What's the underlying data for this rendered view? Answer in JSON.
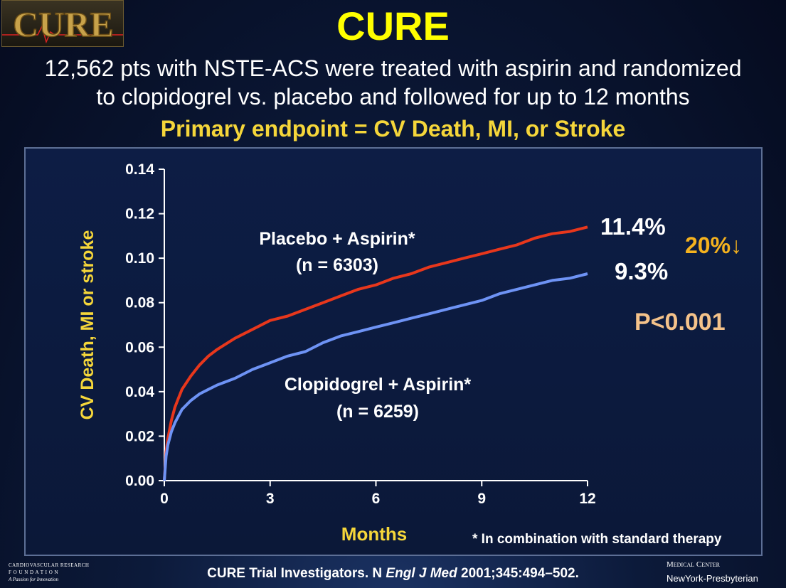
{
  "logo": {
    "text": "CURE"
  },
  "slide": {
    "title": "CURE",
    "subtitle_line1": "12,562 pts with NSTE-ACS were treated with aspirin and randomized",
    "subtitle_line2": "to clopidogrel vs. placebo and followed for up to 12 months",
    "endpoint": "Primary endpoint = CV Death, MI, or Stroke",
    "footnote": "* In combination with standard therapy",
    "citation_prefix": "CURE Trial Investigators. N ",
    "citation_journal": "Engl J Med",
    "citation_suffix": " 2001;345:494–502."
  },
  "logos": {
    "crf_line1": "CARDIOVASCULAR RESEARCH",
    "crf_line2": "F O U N D A T I O N",
    "crf_tagline": "A Passion for Innovation",
    "nyp_line1": "Medical Center",
    "nyp_line2": "NewYork-Presbyterian"
  },
  "colors": {
    "title": "#ffff00",
    "endpoint": "#f5d63a",
    "placebo": "#e8371c",
    "clopidogrel": "#6e93f5",
    "axis_label": "#f5d63a",
    "reduction": "#f5b21e",
    "pvalue": "#f4c28a"
  },
  "chart_data": {
    "type": "line",
    "xlabel": "Months",
    "ylabel": "CV Death, MI or stroke",
    "xlim": [
      0,
      12
    ],
    "ylim": [
      0,
      0.14
    ],
    "xticks": [
      "0",
      "3",
      "6",
      "9",
      "12"
    ],
    "yticks": [
      "0.00",
      "0.02",
      "0.04",
      "0.06",
      "0.08",
      "0.10",
      "0.12",
      "0.14"
    ],
    "grid": false,
    "series": [
      {
        "name": "Placebo + Aspirin*",
        "n_label": "(n = 6303)",
        "end_label": "11.4%",
        "x": [
          0,
          0.05,
          0.1,
          0.2,
          0.3,
          0.4,
          0.5,
          0.75,
          1,
          1.25,
          1.5,
          2,
          2.5,
          3,
          3.5,
          4,
          4.5,
          5,
          5.5,
          6,
          6.5,
          7,
          7.5,
          8,
          8.5,
          9,
          9.5,
          10,
          10.5,
          11,
          11.5,
          12
        ],
        "y": [
          0,
          0.013,
          0.019,
          0.027,
          0.033,
          0.037,
          0.041,
          0.047,
          0.052,
          0.056,
          0.059,
          0.064,
          0.068,
          0.072,
          0.074,
          0.077,
          0.08,
          0.083,
          0.086,
          0.088,
          0.091,
          0.093,
          0.096,
          0.098,
          0.1,
          0.102,
          0.104,
          0.106,
          0.109,
          0.111,
          0.112,
          0.114
        ]
      },
      {
        "name": "Clopidogrel + Aspirin*",
        "n_label": "(n = 6259)",
        "end_label": "9.3%",
        "x": [
          0,
          0.05,
          0.1,
          0.2,
          0.3,
          0.4,
          0.5,
          0.75,
          1,
          1.25,
          1.5,
          2,
          2.5,
          3,
          3.5,
          4,
          4.5,
          5,
          5.5,
          6,
          6.5,
          7,
          7.5,
          8,
          8.5,
          9,
          9.5,
          10,
          10.5,
          11,
          11.5,
          12
        ],
        "y": [
          0,
          0.011,
          0.016,
          0.022,
          0.026,
          0.029,
          0.032,
          0.036,
          0.039,
          0.041,
          0.043,
          0.046,
          0.05,
          0.053,
          0.056,
          0.058,
          0.062,
          0.065,
          0.067,
          0.069,
          0.071,
          0.073,
          0.075,
          0.077,
          0.079,
          0.081,
          0.084,
          0.086,
          0.088,
          0.09,
          0.091,
          0.093
        ]
      }
    ],
    "annotations": {
      "reduction": "20%↓",
      "pvalue": "P<0.001"
    }
  }
}
